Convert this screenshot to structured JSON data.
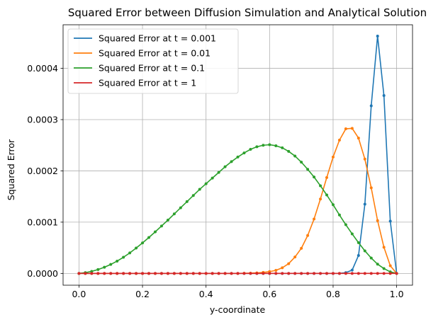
{
  "chart_data": {
    "type": "line",
    "title": "Squared Error between Diffusion Simulation and Analytical Solution",
    "xlabel": "y-coordinate",
    "ylabel": "Squared Error",
    "xlim": [
      -0.05,
      1.05
    ],
    "ylim": [
      -2.3e-05,
      0.000485
    ],
    "xticks": [
      0.0,
      0.2,
      0.4,
      0.6,
      0.8,
      1.0
    ],
    "xtick_labels": [
      "0.0",
      "0.2",
      "0.4",
      "0.6",
      "0.8",
      "1.0"
    ],
    "yticks": [
      0.0,
      0.0001,
      0.0002,
      0.0003,
      0.0004
    ],
    "ytick_labels": [
      "0.0000",
      "0.0001",
      "0.0002",
      "0.0003",
      "0.0004"
    ],
    "grid": true,
    "legend_position": "top-left",
    "x_grid": {
      "start": 0.0,
      "end": 1.0,
      "count": 51
    },
    "series": [
      {
        "name": "Squared Error at t = 0.001",
        "color": "#1f77b4",
        "points": [
          [
            0.0,
            0
          ],
          [
            0.82,
            0
          ],
          [
            0.84,
            1.5e-06
          ],
          [
            0.86,
            6.5e-06
          ],
          [
            0.88,
            3.5e-05
          ],
          [
            0.9,
            0.000135
          ],
          [
            0.92,
            0.000327
          ],
          [
            0.94,
            0.000463
          ],
          [
            0.96,
            0.000347
          ],
          [
            0.98,
            0.000102
          ],
          [
            1.0,
            0
          ]
        ]
      },
      {
        "name": "Squared Error at t = 0.01",
        "color": "#ff7f0e",
        "points": [
          [
            0.0,
            0
          ],
          [
            0.5,
            0
          ],
          [
            0.54,
            5e-07
          ],
          [
            0.56,
            1e-06
          ],
          [
            0.58,
            2e-06
          ],
          [
            0.6,
            3.5e-06
          ],
          [
            0.62,
            6e-06
          ],
          [
            0.64,
            1.1e-05
          ],
          [
            0.66,
            1.9e-05
          ],
          [
            0.68,
            3.2e-05
          ],
          [
            0.7,
            4.9e-05
          ],
          [
            0.72,
            7.4e-05
          ],
          [
            0.74,
            0.000106
          ],
          [
            0.76,
            0.000145
          ],
          [
            0.78,
            0.000187
          ],
          [
            0.8,
            0.000227
          ],
          [
            0.82,
            0.00026
          ],
          [
            0.84,
            0.000282
          ],
          [
            0.86,
            0.000283
          ],
          [
            0.88,
            0.000264
          ],
          [
            0.9,
            0.000223
          ],
          [
            0.92,
            0.000167
          ],
          [
            0.94,
            0.000103
          ],
          [
            0.96,
            5.1e-05
          ],
          [
            0.98,
            1.5e-05
          ],
          [
            1.0,
            0
          ]
        ]
      },
      {
        "name": "Squared Error at t = 0.1",
        "color": "#2ca02c",
        "points": [
          [
            0.0,
            0
          ],
          [
            0.02,
            1.5e-06
          ],
          [
            0.04,
            4e-06
          ],
          [
            0.06,
            7.5e-06
          ],
          [
            0.08,
            1.2e-05
          ],
          [
            0.1,
            1.75e-05
          ],
          [
            0.12,
            2.4e-05
          ],
          [
            0.14,
            3.15e-05
          ],
          [
            0.16,
            4e-05
          ],
          [
            0.18,
            4.95e-05
          ],
          [
            0.2,
            5.95e-05
          ],
          [
            0.22,
            7e-05
          ],
          [
            0.24,
            8.1e-05
          ],
          [
            0.26,
            9.25e-05
          ],
          [
            0.28,
            0.000104
          ],
          [
            0.3,
            0.000116
          ],
          [
            0.32,
            0.000128
          ],
          [
            0.34,
            0.00014
          ],
          [
            0.36,
            0.000152
          ],
          [
            0.38,
            0.000164
          ],
          [
            0.4,
            0.000175
          ],
          [
            0.42,
            0.000186
          ],
          [
            0.44,
            0.000197
          ],
          [
            0.46,
            0.000208
          ],
          [
            0.48,
            0.000218
          ],
          [
            0.5,
            0.000227
          ],
          [
            0.52,
            0.000235
          ],
          [
            0.54,
            0.000242
          ],
          [
            0.56,
            0.000247
          ],
          [
            0.58,
            0.00025
          ],
          [
            0.6,
            0.000251
          ],
          [
            0.62,
            0.000249
          ],
          [
            0.64,
            0.000245
          ],
          [
            0.66,
            0.000238
          ],
          [
            0.68,
            0.000229
          ],
          [
            0.7,
            0.000217
          ],
          [
            0.72,
            0.000203
          ],
          [
            0.74,
            0.000188
          ],
          [
            0.76,
            0.000171
          ],
          [
            0.78,
            0.000153
          ],
          [
            0.8,
            0.000134
          ],
          [
            0.82,
            0.000114
          ],
          [
            0.84,
            9.5e-05
          ],
          [
            0.86,
            7.7e-05
          ],
          [
            0.88,
            6e-05
          ],
          [
            0.9,
            4.4e-05
          ],
          [
            0.92,
            3e-05
          ],
          [
            0.94,
            1.8e-05
          ],
          [
            0.96,
            9.5e-06
          ],
          [
            0.98,
            3e-06
          ],
          [
            1.0,
            0
          ]
        ]
      },
      {
        "name": "Squared Error at t = 1",
        "color": "#d62728",
        "points": [
          [
            0.0,
            0
          ],
          [
            1.0,
            0
          ]
        ]
      }
    ]
  }
}
